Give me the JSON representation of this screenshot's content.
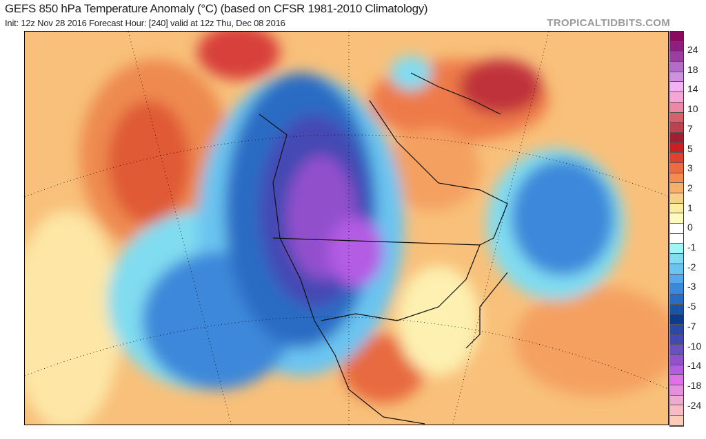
{
  "header": {
    "title": "GEFS 850 hPa Temperature Anomaly (°C) (based on CFSR 1981-2010 Climatology)",
    "subtitle": "Init: 12z Nov 28 2016   Forecast Hour: [240]   valid at 12z Thu, Dec 08 2016",
    "brand": "TROPICALTIDBITS.COM"
  },
  "colorbar": {
    "labels": [
      "24",
      "18",
      "14",
      "10",
      "7",
      "5",
      "3",
      "2",
      "1",
      "0",
      "-1",
      "-2",
      "-3",
      "-5",
      "-7",
      "-10",
      "-14",
      "-18",
      "-24"
    ],
    "colors": [
      "#8a0a5e",
      "#8e1f7e",
      "#9a3fa0",
      "#b46cc8",
      "#d08fdf",
      "#f2b2f2",
      "#f7a4d8",
      "#ec88a6",
      "#d8606e",
      "#c04050",
      "#9e2030",
      "#c81e24",
      "#e04030",
      "#ee6a40",
      "#f48c50",
      "#f8b068",
      "#f8d088",
      "#fcee9c",
      "#fffac0",
      "#ffffff",
      "#ffffff",
      "#a0f6f6",
      "#80dcf0",
      "#6ac4f0",
      "#56a8ee",
      "#3c88da",
      "#2a6cc4",
      "#1a54a8",
      "#0a3c8c",
      "#2a48a8",
      "#4448b4",
      "#6a50c0",
      "#9250cc",
      "#b45ce4",
      "#e070e8",
      "#e690dc",
      "#eeaad0",
      "#f6bcc4",
      "#fcccb8"
    ]
  }
}
